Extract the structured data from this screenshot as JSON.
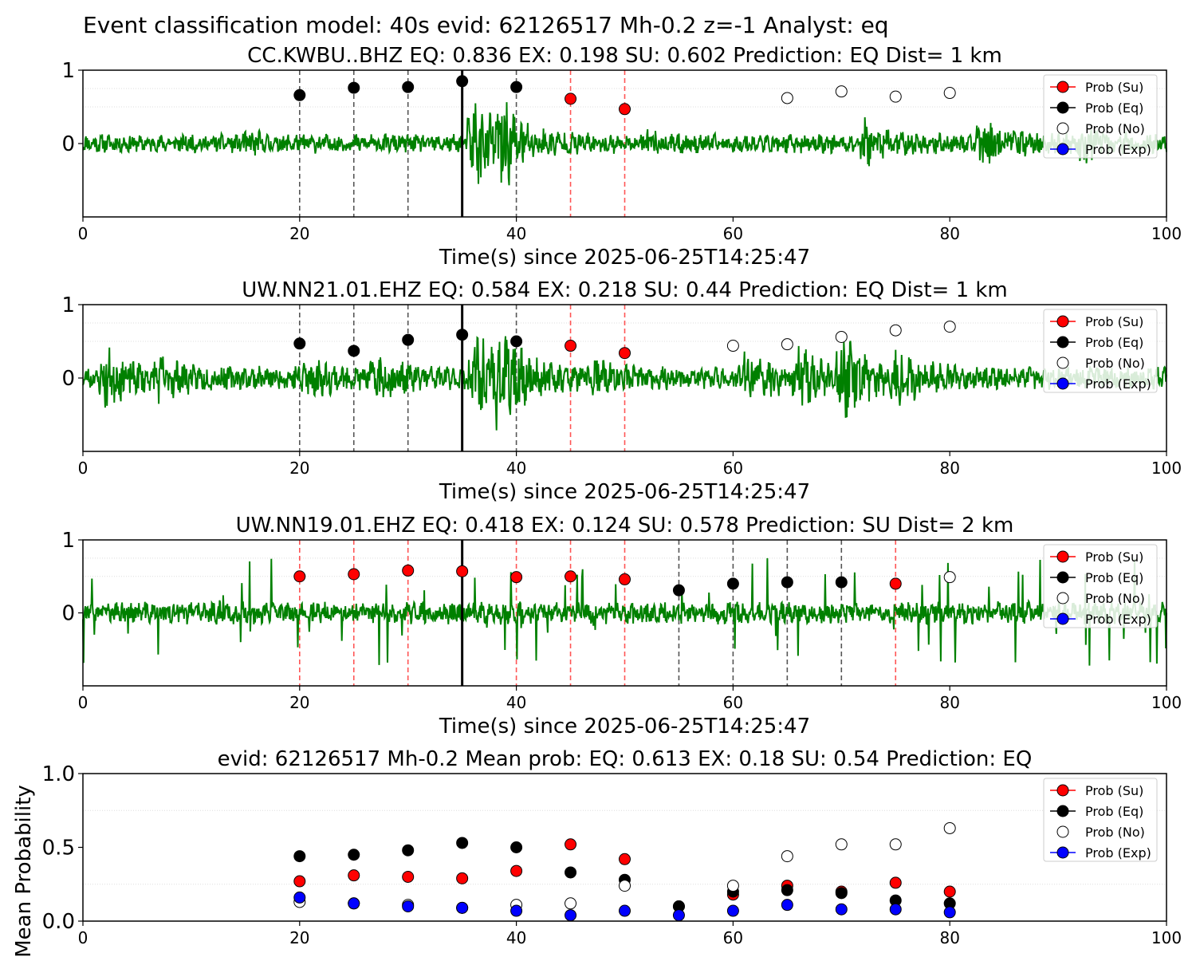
{
  "suptitle": "Event classification model: 40s evid: 62126517 Mh-0.2 z=-1 Analyst: eq",
  "colors": {
    "waveform": "#008000",
    "su": "#ff0000",
    "eq": "#000000",
    "no": "#ffffff",
    "exp": "#0000ff",
    "su_vline": "#ff5555",
    "eq_vline": "#555555",
    "pick": "#000000"
  },
  "legend": [
    "Prob (Su)",
    "Prob (Eq)",
    "Prob (No)",
    "Prob (Exp)"
  ],
  "chart_data": [
    {
      "type": "line",
      "title": "CC.KWBU..BHZ   EQ: 0.836  EX: 0.198  SU: 0.602   Prediction: EQ    Dist= 1 km",
      "xlabel": "Time(s) since 2025-06-25T14:25:47",
      "ylabel": "",
      "xlim": [
        0,
        100
      ],
      "ylim": [
        -1,
        1
      ],
      "xticks": [
        0,
        20,
        40,
        60,
        80,
        100
      ],
      "yticks": [
        0,
        1
      ],
      "pick_time": 35,
      "legend_position": "top-right",
      "waveform": {
        "seed": 11,
        "base": 0.1,
        "bursts": [
          [
            15,
            0.07
          ],
          [
            36,
            0.5
          ],
          [
            38.5,
            0.35
          ],
          [
            52,
            0.06
          ],
          [
            72,
            0.18
          ],
          [
            83,
            0.22
          ],
          [
            92,
            0.16
          ]
        ]
      },
      "series": [
        {
          "name": "Prob (Su)",
          "x": [
            45,
            50
          ],
          "y": [
            0.61,
            0.47
          ]
        },
        {
          "name": "Prob (Eq)",
          "x": [
            20,
            25,
            30,
            35,
            40
          ],
          "y": [
            0.66,
            0.76,
            0.77,
            0.85,
            0.77
          ]
        },
        {
          "name": "Prob (No)",
          "x": [
            65,
            70,
            75,
            80
          ],
          "y": [
            0.62,
            0.71,
            0.64,
            0.69
          ]
        },
        {
          "name": "Prob (Exp)",
          "x": [],
          "y": []
        }
      ]
    },
    {
      "type": "line",
      "title": "UW.NN21.01.EHZ   EQ: 0.584  EX: 0.218  SU: 0.44   Prediction: EQ    Dist= 1 km",
      "xlabel": "Time(s) since 2025-06-25T14:25:47",
      "ylabel": "",
      "xlim": [
        0,
        100
      ],
      "ylim": [
        -1,
        1
      ],
      "xticks": [
        0,
        20,
        40,
        60,
        80,
        100
      ],
      "yticks": [
        0,
        1
      ],
      "pick_time": 35,
      "legend_position": "top-right",
      "waveform": {
        "seed": 23,
        "base": 0.12,
        "bursts": [
          [
            2,
            0.25
          ],
          [
            7,
            0.15
          ],
          [
            20,
            0.2
          ],
          [
            27,
            0.18
          ],
          [
            36,
            0.45
          ],
          [
            38,
            0.4
          ],
          [
            47,
            0.12
          ],
          [
            61,
            0.3
          ],
          [
            66,
            0.22
          ],
          [
            70,
            0.35
          ],
          [
            75,
            0.2
          ]
        ]
      },
      "series": [
        {
          "name": "Prob (Su)",
          "x": [
            45,
            50
          ],
          "y": [
            0.44,
            0.34
          ]
        },
        {
          "name": "Prob (Eq)",
          "x": [
            20,
            25,
            30,
            35,
            40
          ],
          "y": [
            0.47,
            0.37,
            0.52,
            0.59,
            0.5
          ]
        },
        {
          "name": "Prob (No)",
          "x": [
            60,
            65,
            70,
            75,
            80
          ],
          "y": [
            0.44,
            0.46,
            0.56,
            0.65,
            0.7
          ]
        },
        {
          "name": "Prob (Exp)",
          "x": [],
          "y": []
        }
      ]
    },
    {
      "type": "line",
      "title": "UW.NN19.01.EHZ   EQ: 0.418  EX: 0.124  SU: 0.578   Prediction: SU    Dist= 2 km",
      "xlabel": "Time(s) since 2025-06-25T14:25:47",
      "ylabel": "",
      "xlim": [
        0,
        100
      ],
      "ylim": [
        -1,
        1
      ],
      "xticks": [
        0,
        20,
        40,
        60,
        80,
        100
      ],
      "yticks": [
        0,
        1
      ],
      "pick_time": 35,
      "legend_position": "top-right",
      "waveform": {
        "seed": 37,
        "base": 0.12,
        "spiky": true,
        "bursts": []
      },
      "series": [
        {
          "name": "Prob (Su)",
          "x": [
            20,
            25,
            30,
            35,
            40,
            45,
            50,
            75
          ],
          "y": [
            0.5,
            0.53,
            0.58,
            0.57,
            0.49,
            0.5,
            0.46,
            0.4
          ]
        },
        {
          "name": "Prob (Eq)",
          "x": [
            55,
            60,
            65,
            70
          ],
          "y": [
            0.31,
            0.4,
            0.42,
            0.42
          ]
        },
        {
          "name": "Prob (No)",
          "x": [
            80
          ],
          "y": [
            0.49
          ]
        },
        {
          "name": "Prob (Exp)",
          "x": [],
          "y": []
        }
      ]
    },
    {
      "type": "scatter",
      "title": "evid: 62126517  Mh-0.2   Mean prob:   EQ: 0.613  EX: 0.18  SU: 0.54   Prediction: EQ",
      "xlabel": "",
      "ylabel": "Mean Probability",
      "xlim": [
        0,
        100
      ],
      "ylim": [
        0,
        1
      ],
      "xticks": [
        0,
        20,
        40,
        60,
        80,
        100
      ],
      "yticks": [
        0.0,
        0.5,
        1.0
      ],
      "ytick_labels": [
        "0.0",
        "0.5",
        "1.0"
      ],
      "legend_position": "top-right",
      "series": [
        {
          "name": "Prob (Su)",
          "x": [
            20,
            25,
            30,
            35,
            40,
            45,
            50,
            55,
            60,
            65,
            70,
            75,
            80
          ],
          "y": [
            0.27,
            0.31,
            0.3,
            0.29,
            0.34,
            0.52,
            0.42,
            0.1,
            0.18,
            0.24,
            0.2,
            0.26,
            0.2
          ]
        },
        {
          "name": "Prob (Eq)",
          "x": [
            20,
            25,
            30,
            35,
            40,
            45,
            50,
            55,
            60,
            65,
            70,
            75,
            80
          ],
          "y": [
            0.44,
            0.45,
            0.48,
            0.53,
            0.5,
            0.33,
            0.28,
            0.1,
            0.2,
            0.21,
            0.19,
            0.14,
            0.12
          ]
        },
        {
          "name": "Prob (No)",
          "x": [
            20,
            25,
            30,
            35,
            40,
            45,
            50,
            60,
            65,
            70,
            75,
            80
          ],
          "y": [
            0.13,
            0.12,
            0.11,
            0.09,
            0.11,
            0.12,
            0.24,
            0.24,
            0.44,
            0.52,
            0.52,
            0.63
          ]
        },
        {
          "name": "Prob (Exp)",
          "x": [
            20,
            25,
            30,
            35,
            40,
            45,
            50,
            55,
            60,
            65,
            70,
            75,
            80
          ],
          "y": [
            0.16,
            0.12,
            0.1,
            0.09,
            0.07,
            0.04,
            0.07,
            0.04,
            0.07,
            0.11,
            0.08,
            0.08,
            0.06
          ]
        }
      ]
    }
  ]
}
